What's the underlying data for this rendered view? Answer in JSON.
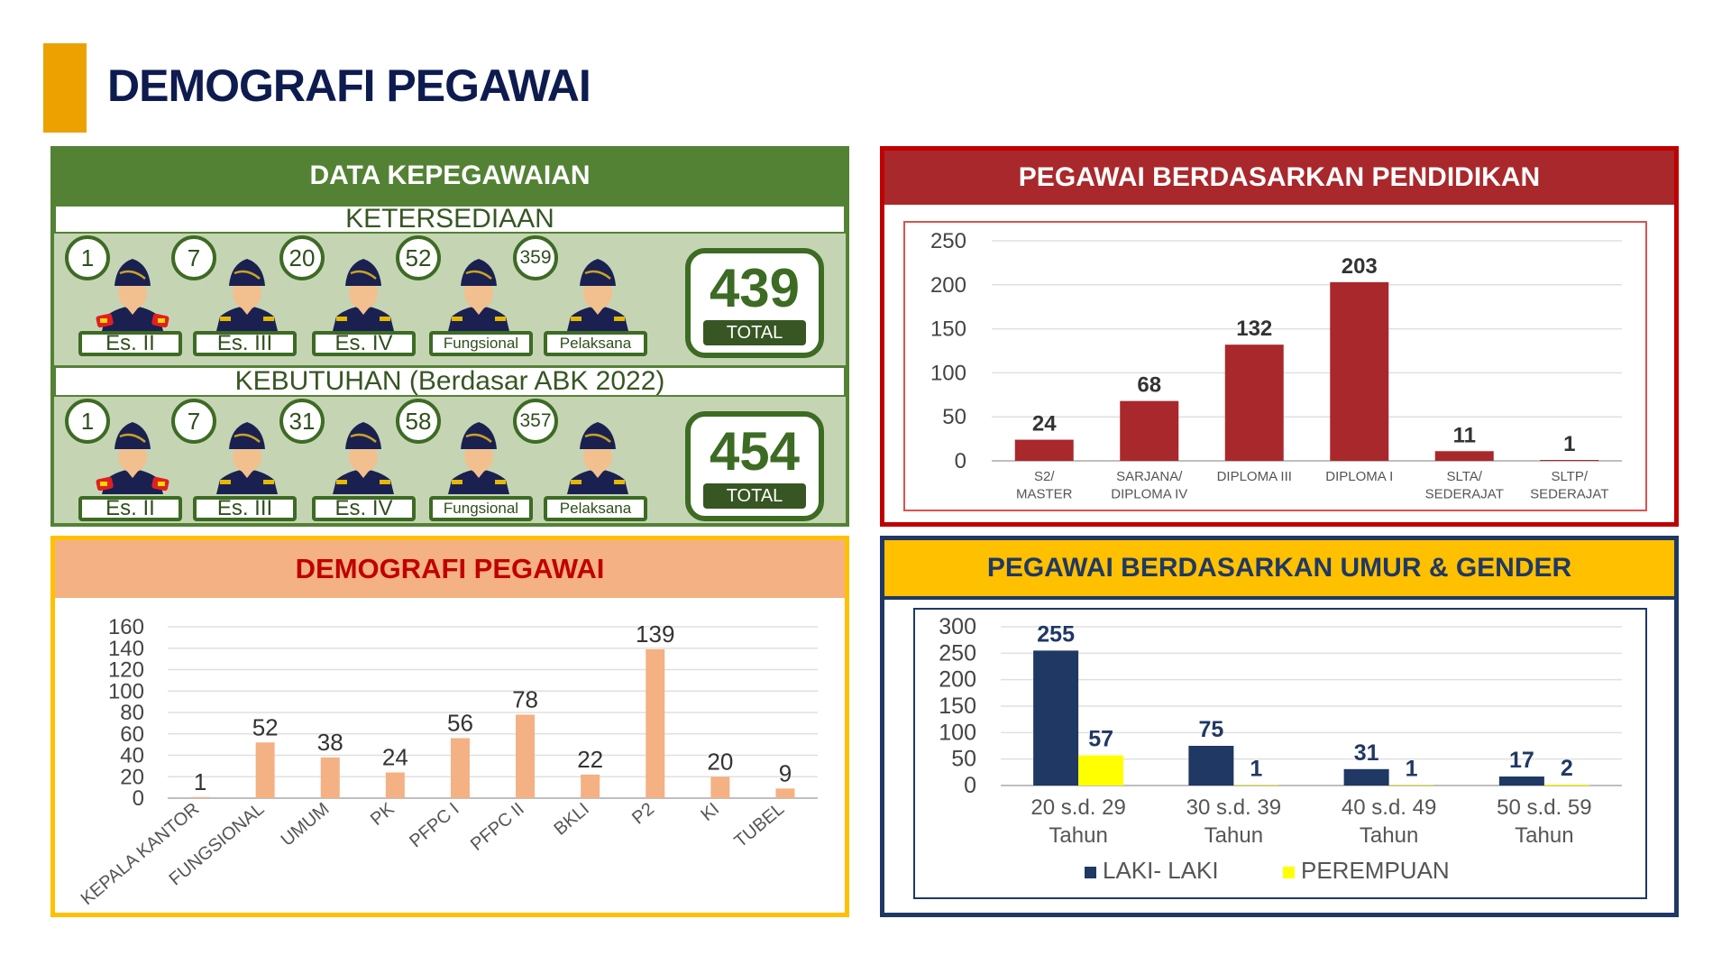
{
  "page": {
    "title": "DEMOGRAFI PEGAWAI",
    "accent_color": "#eda100"
  },
  "kepegawaian": {
    "title": "DATA KEPEGAWAIAN",
    "rows": [
      {
        "heading": "KETERSEDIAAN",
        "total": "439",
        "total_label": "TOTAL",
        "items": [
          {
            "count": "1",
            "label": "Es. II"
          },
          {
            "count": "7",
            "label": "Es. III"
          },
          {
            "count": "20",
            "label": "Es. IV"
          },
          {
            "count": "52",
            "label": "Fungsional"
          },
          {
            "count": "359",
            "label": "Pelaksana"
          }
        ]
      },
      {
        "heading": "KEBUTUHAN (Berdasar ABK 2022)",
        "total": "454",
        "total_label": "TOTAL",
        "items": [
          {
            "count": "1",
            "label": "Es. II"
          },
          {
            "count": "7",
            "label": "Es. III"
          },
          {
            "count": "31",
            "label": "Es. IV"
          },
          {
            "count": "58",
            "label": "Fungsional"
          },
          {
            "count": "357",
            "label": "Pelaksana"
          }
        ]
      }
    ]
  },
  "chart_data": [
    {
      "id": "pendidikan",
      "title": "PEGAWAI BERDASARKAN PENDIDIKAN",
      "type": "bar",
      "categories": [
        [
          "S2/",
          "MASTER"
        ],
        [
          "SARJANA/",
          "DIPLOMA IV"
        ],
        [
          "DIPLOMA III"
        ],
        [
          "DIPLOMA I"
        ],
        [
          "SLTA/",
          "SEDERAJAT"
        ],
        [
          "SLTP/",
          "SEDERAJAT"
        ]
      ],
      "values": [
        24,
        68,
        132,
        203,
        11,
        1
      ],
      "ylim": [
        0,
        250
      ],
      "yticks": [
        0,
        50,
        100,
        150,
        200,
        250
      ],
      "grid": true,
      "color": "#a9282b"
    },
    {
      "id": "demografi",
      "title": "DEMOGRAFI PEGAWAI",
      "type": "bar",
      "categories": [
        "KEPALA KANTOR",
        "FUNGSIONAL",
        "UMUM",
        "PK",
        "PFPC I",
        "PFPC II",
        "BKLI",
        "P2",
        "KI",
        "TUBEL"
      ],
      "values": [
        1,
        52,
        38,
        24,
        56,
        78,
        22,
        139,
        20,
        9
      ],
      "ylim": [
        0,
        160
      ],
      "yticks": [
        0,
        20,
        40,
        60,
        80,
        100,
        120,
        140,
        160
      ],
      "grid": true,
      "color": "#f4b183"
    },
    {
      "id": "umur",
      "title": "PEGAWAI BERDASARKAN UMUR & GENDER",
      "type": "bar",
      "categories": [
        [
          "20 s.d. 29",
          "Tahun"
        ],
        [
          "30 s.d. 39",
          "Tahun"
        ],
        [
          "40 s.d. 49",
          "Tahun"
        ],
        [
          "50 s.d. 59",
          "Tahun"
        ]
      ],
      "series": [
        {
          "name": "LAKI- LAKI",
          "values": [
            255,
            75,
            31,
            17
          ],
          "color": "#1f3864"
        },
        {
          "name": "PEREMPUAN",
          "values": [
            57,
            1,
            1,
            2
          ],
          "color": "#ffff00"
        }
      ],
      "ylim": [
        0,
        300
      ],
      "yticks": [
        0,
        50,
        100,
        150,
        200,
        250,
        300
      ],
      "grid": true,
      "legend": "bottom"
    }
  ]
}
